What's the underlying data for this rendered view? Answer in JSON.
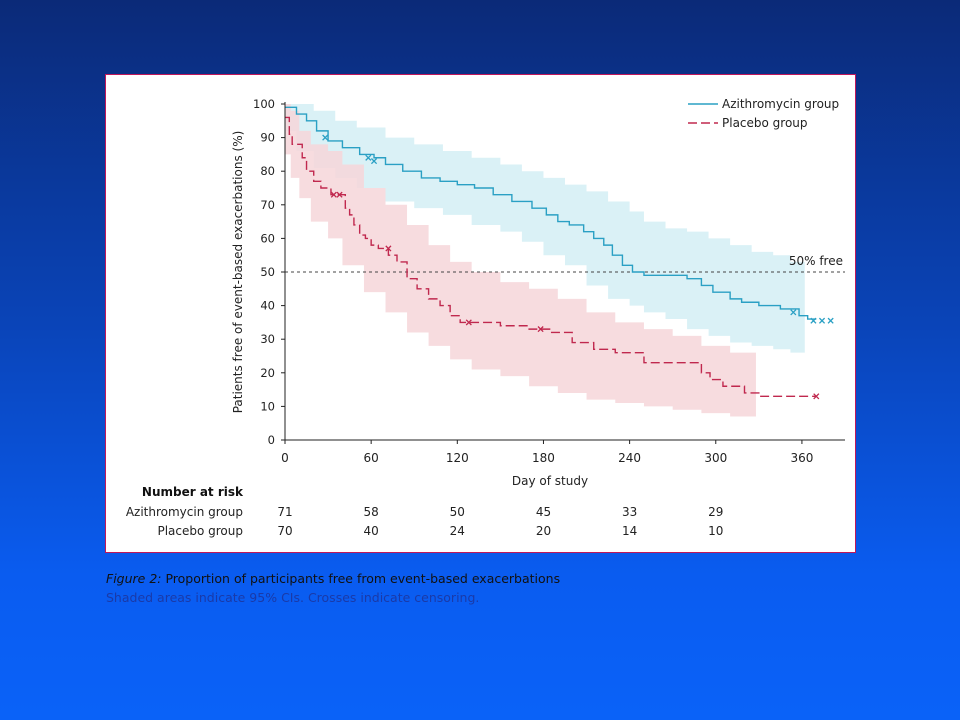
{
  "chart_data": {
    "type": "line",
    "subtype": "kaplan-meier",
    "xlabel": "Day of study",
    "ylabel": "Patients free of event-based exacerbations (%)",
    "xlim": [
      0,
      390
    ],
    "ylim": [
      0,
      100
    ],
    "x_ticks": [
      0,
      60,
      120,
      180,
      240,
      300,
      360
    ],
    "y_ticks": [
      0,
      10,
      20,
      30,
      40,
      50,
      60,
      70,
      80,
      90,
      100
    ],
    "legend_position": "top-right",
    "reference_line": {
      "y": 50,
      "label": "50% free"
    },
    "series": [
      {
        "name": "Azithromycin group",
        "color": "#2aa0c4",
        "band_color": "#d3eef4",
        "line_style": "solid",
        "steps": [
          [
            0,
            99
          ],
          [
            8,
            97
          ],
          [
            15,
            95
          ],
          [
            22,
            92
          ],
          [
            30,
            89
          ],
          [
            40,
            87
          ],
          [
            52,
            85
          ],
          [
            62,
            84
          ],
          [
            70,
            82
          ],
          [
            82,
            80
          ],
          [
            95,
            78
          ],
          [
            108,
            77
          ],
          [
            120,
            76
          ],
          [
            132,
            75
          ],
          [
            145,
            73
          ],
          [
            158,
            71
          ],
          [
            172,
            69
          ],
          [
            182,
            67
          ],
          [
            190,
            65
          ],
          [
            198,
            64
          ],
          [
            208,
            62
          ],
          [
            215,
            60
          ],
          [
            222,
            58
          ],
          [
            228,
            55
          ],
          [
            235,
            52
          ],
          [
            242,
            50
          ],
          [
            250,
            49
          ],
          [
            265,
            49
          ],
          [
            280,
            48
          ],
          [
            290,
            46
          ],
          [
            298,
            44
          ],
          [
            310,
            42
          ],
          [
            318,
            41
          ],
          [
            330,
            40
          ],
          [
            345,
            39
          ],
          [
            358,
            37
          ],
          [
            364,
            36
          ],
          [
            370,
            36
          ]
        ],
        "upper": [
          [
            0,
            100
          ],
          [
            8,
            100
          ],
          [
            20,
            98
          ],
          [
            35,
            95
          ],
          [
            50,
            93
          ],
          [
            70,
            90
          ],
          [
            90,
            88
          ],
          [
            110,
            86
          ],
          [
            130,
            84
          ],
          [
            150,
            82
          ],
          [
            165,
            80
          ],
          [
            180,
            78
          ],
          [
            195,
            76
          ],
          [
            210,
            74
          ],
          [
            225,
            71
          ],
          [
            240,
            68
          ],
          [
            250,
            65
          ],
          [
            265,
            63
          ],
          [
            280,
            62
          ],
          [
            295,
            60
          ],
          [
            310,
            58
          ],
          [
            325,
            56
          ],
          [
            340,
            55
          ],
          [
            352,
            53
          ],
          [
            362,
            52
          ]
        ],
        "lower": [
          [
            0,
            95
          ],
          [
            8,
            92
          ],
          [
            20,
            86
          ],
          [
            35,
            81
          ],
          [
            50,
            78
          ],
          [
            70,
            75
          ],
          [
            90,
            71
          ],
          [
            110,
            69
          ],
          [
            130,
            67
          ],
          [
            150,
            64
          ],
          [
            165,
            62
          ],
          [
            180,
            59
          ],
          [
            195,
            55
          ],
          [
            210,
            52
          ],
          [
            225,
            46
          ],
          [
            240,
            42
          ],
          [
            250,
            40
          ],
          [
            265,
            38
          ],
          [
            280,
            36
          ],
          [
            295,
            33
          ],
          [
            310,
            31
          ],
          [
            325,
            29
          ],
          [
            340,
            28
          ],
          [
            352,
            27
          ],
          [
            362,
            26
          ]
        ],
        "censor": [
          [
            28,
            90
          ],
          [
            58,
            84
          ],
          [
            62,
            83
          ],
          [
            354,
            38
          ],
          [
            368,
            35.5
          ],
          [
            374,
            35.5
          ],
          [
            380,
            35.5
          ]
        ]
      },
      {
        "name": "Placebo group",
        "color": "#c0284e",
        "band_color": "#f6d6d9",
        "line_style": "dashed",
        "steps": [
          [
            0,
            96
          ],
          [
            3,
            91
          ],
          [
            5,
            88
          ],
          [
            12,
            84
          ],
          [
            15,
            80
          ],
          [
            20,
            77
          ],
          [
            25,
            75
          ],
          [
            32,
            73
          ],
          [
            38,
            73
          ],
          [
            42,
            69
          ],
          [
            45,
            67
          ],
          [
            48,
            64
          ],
          [
            52,
            61
          ],
          [
            56,
            60
          ],
          [
            60,
            58
          ],
          [
            65,
            57
          ],
          [
            72,
            55
          ],
          [
            78,
            53
          ],
          [
            85,
            48
          ],
          [
            92,
            45
          ],
          [
            100,
            42
          ],
          [
            108,
            40
          ],
          [
            115,
            37
          ],
          [
            122,
            35
          ],
          [
            130,
            35
          ],
          [
            150,
            34
          ],
          [
            170,
            33
          ],
          [
            185,
            32
          ],
          [
            200,
            29
          ],
          [
            215,
            27
          ],
          [
            230,
            26
          ],
          [
            250,
            23
          ],
          [
            275,
            23
          ],
          [
            290,
            20
          ],
          [
            296,
            18
          ],
          [
            305,
            16
          ],
          [
            320,
            14
          ],
          [
            330,
            13
          ],
          [
            350,
            13
          ],
          [
            370,
            13
          ]
        ],
        "upper": [
          [
            0,
            100
          ],
          [
            4,
            98
          ],
          [
            10,
            92
          ],
          [
            18,
            88
          ],
          [
            30,
            86
          ],
          [
            40,
            82
          ],
          [
            55,
            75
          ],
          [
            70,
            70
          ],
          [
            85,
            64
          ],
          [
            100,
            58
          ],
          [
            115,
            53
          ],
          [
            130,
            50
          ],
          [
            150,
            47
          ],
          [
            170,
            45
          ],
          [
            190,
            42
          ],
          [
            210,
            38
          ],
          [
            230,
            35
          ],
          [
            250,
            33
          ],
          [
            270,
            31
          ],
          [
            290,
            28
          ],
          [
            310,
            26
          ],
          [
            328,
            25
          ]
        ],
        "lower": [
          [
            0,
            92
          ],
          [
            4,
            85
          ],
          [
            10,
            78
          ],
          [
            18,
            72
          ],
          [
            30,
            65
          ],
          [
            40,
            60
          ],
          [
            55,
            52
          ],
          [
            70,
            44
          ],
          [
            85,
            38
          ],
          [
            100,
            32
          ],
          [
            115,
            28
          ],
          [
            130,
            24
          ],
          [
            150,
            21
          ],
          [
            170,
            19
          ],
          [
            190,
            16
          ],
          [
            210,
            14
          ],
          [
            230,
            12
          ],
          [
            250,
            11
          ],
          [
            270,
            10
          ],
          [
            290,
            9
          ],
          [
            310,
            8
          ],
          [
            328,
            7
          ]
        ],
        "censor": [
          [
            34,
            73
          ],
          [
            38,
            73
          ],
          [
            72,
            57
          ],
          [
            128,
            35
          ],
          [
            178,
            33
          ],
          [
            370,
            13
          ]
        ]
      }
    ],
    "risk_table": {
      "title": "Number at risk",
      "rows": [
        {
          "label": "Azithromycin group",
          "values": [
            "71",
            "58",
            "50",
            "45",
            "33",
            "29"
          ]
        },
        {
          "label": "Placebo group",
          "values": [
            "70",
            "40",
            "24",
            "20",
            "14",
            "10"
          ]
        }
      ]
    }
  },
  "caption": {
    "figure_label": "Figure 2:",
    "title": " Proportion of participants free from event-based exacerbations",
    "subtitle": "Shaded areas indicate 95% CIs. Crosses indicate censoring."
  }
}
